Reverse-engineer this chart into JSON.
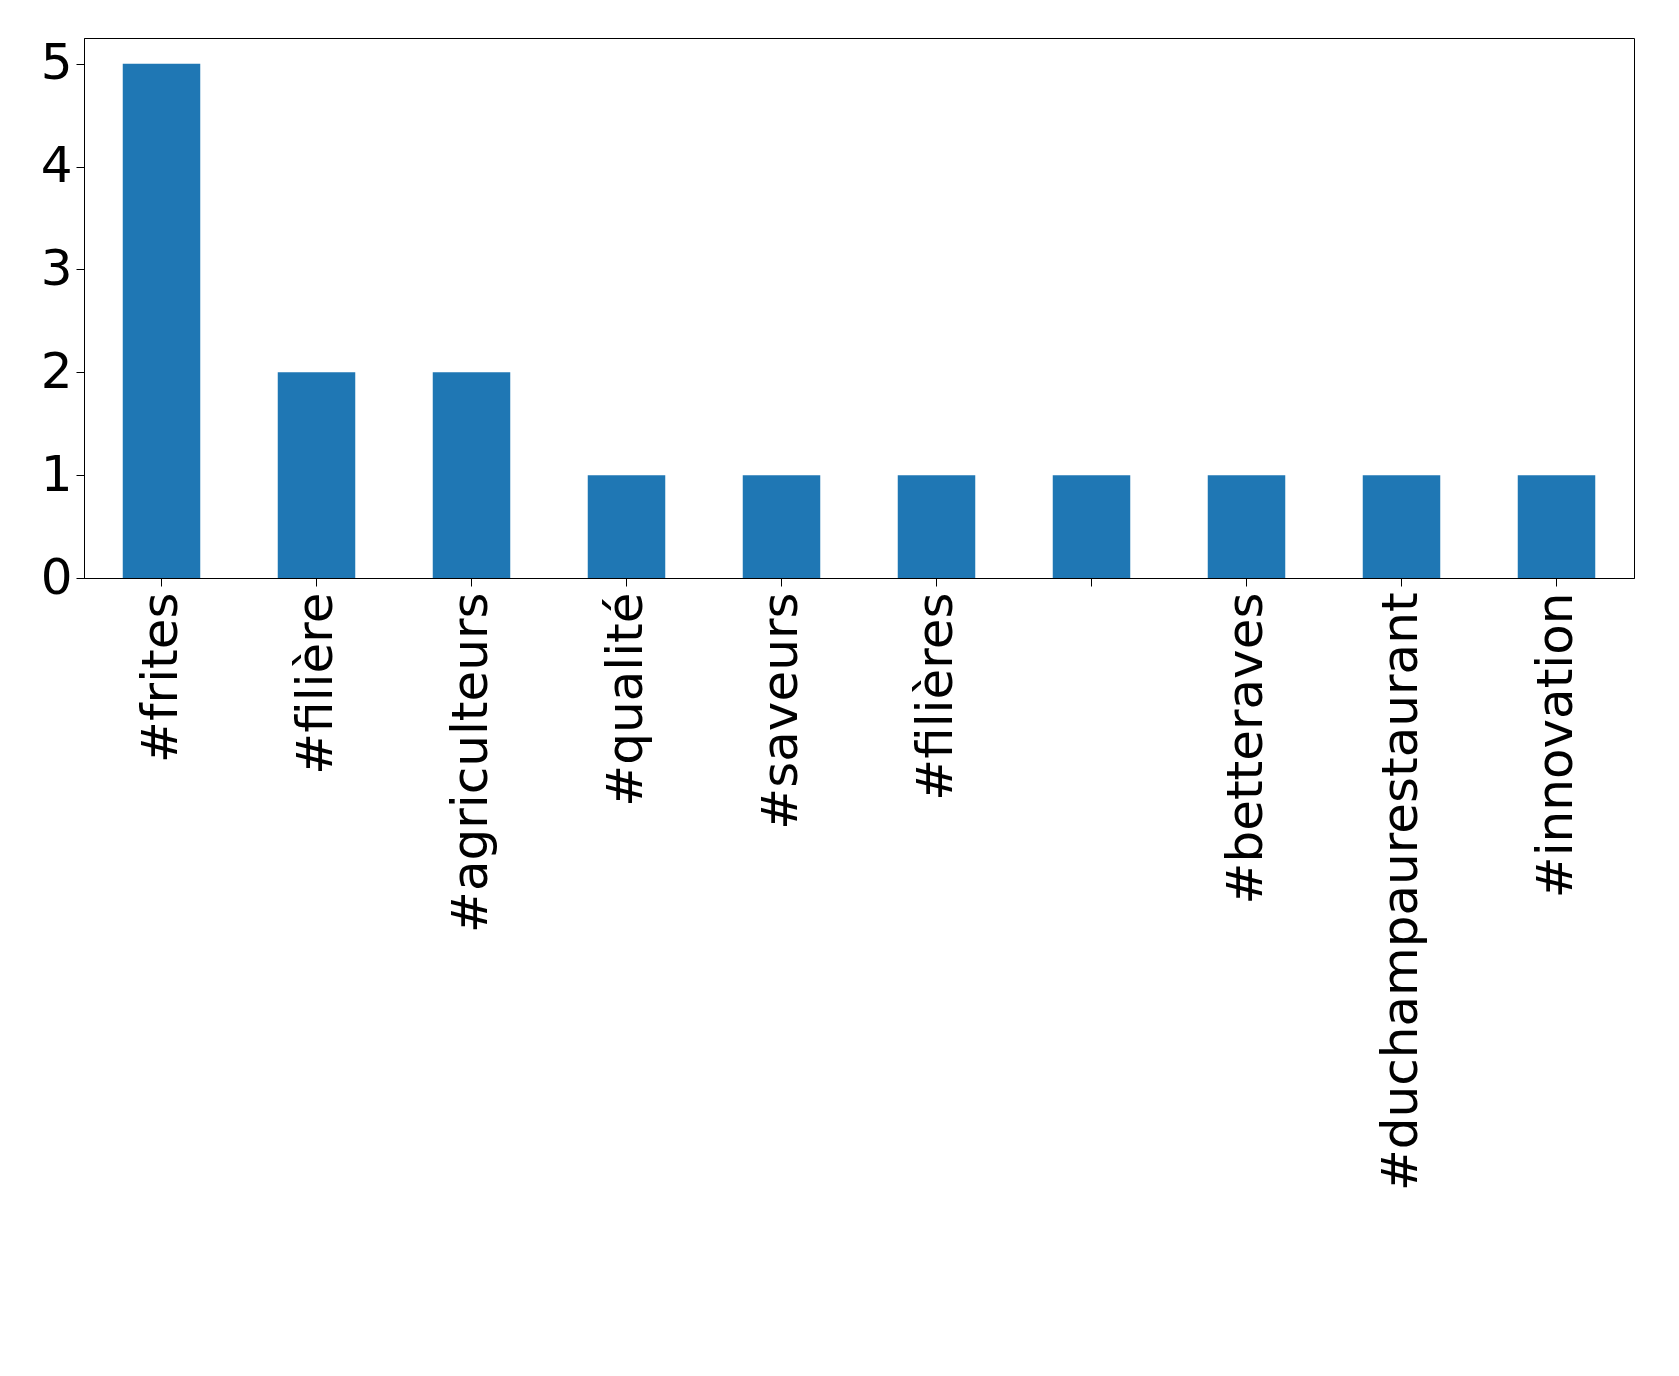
{
  "chart_data": {
    "type": "bar",
    "categories": [
      "#frites",
      "#filière",
      "#agriculteurs",
      "#qualité",
      "#saveurs",
      "#filières",
      null,
      "#betteraves",
      "#duchampaurestaurant",
      "#innovation"
    ],
    "values": [
      5,
      2,
      2,
      1,
      1,
      1,
      1,
      1,
      1,
      1
    ],
    "color": "#1f77b4",
    "ylim": [
      0,
      5.25
    ],
    "yticks": [
      0,
      1,
      2,
      3,
      4,
      5
    ],
    "grid": false
  }
}
